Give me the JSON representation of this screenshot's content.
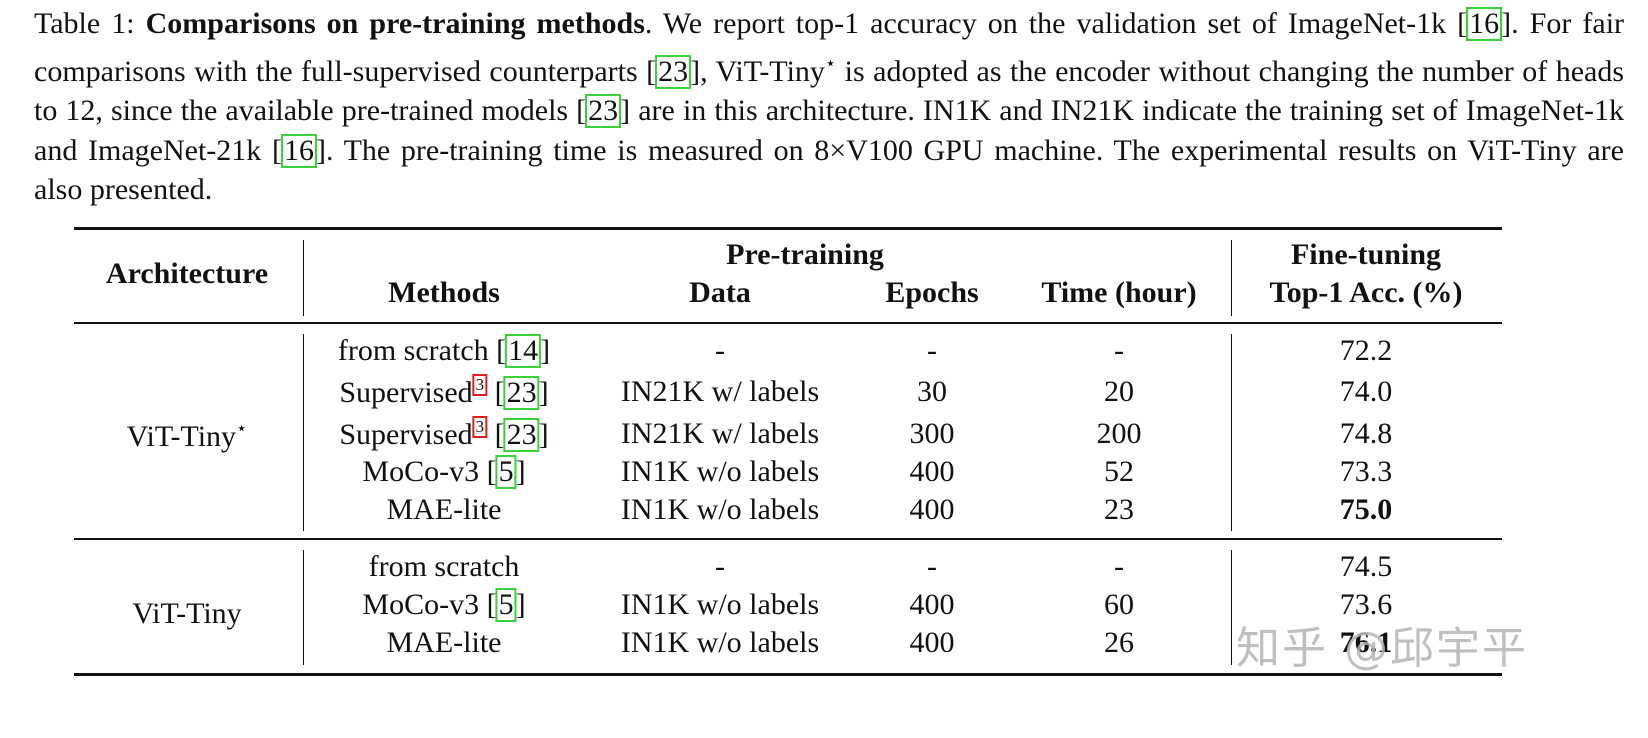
{
  "caption": {
    "label": "Table 1:",
    "title": "Comparisons on pre-training methods",
    "t1": ". We report top-1 accuracy on the validation set of ImageNet-1k [",
    "c1": "16",
    "t2": "]. For fair comparisons with the full-supervised counterparts [",
    "c2": "23",
    "t3": "], ViT-Tiny",
    "star": "⋆",
    "t4": " is adopted as the encoder without changing the number of heads to 12, since the available pre-trained models [",
    "c3": "23",
    "t5": "] are in this architecture. IN1K and IN21K indicate the training set of ImageNet-1k and ImageNet-21k [",
    "c4": "16",
    "t6": "]. The pre-training time is measured on 8×V100 GPU machine. The experimental results on ViT-Tiny are also presented."
  },
  "headers": {
    "architecture": "Architecture",
    "pretraining": "Pre-training",
    "methods": "Methods",
    "data": "Data",
    "epochs": "Epochs",
    "time": "Time (hour)",
    "finetuning": "Fine-tuning",
    "top1": "Top-1 Acc. (%)"
  },
  "groups": [
    {
      "arch": "ViT-Tiny",
      "arch_sup": "⋆",
      "rows": [
        {
          "method": "from scratch",
          "fn": "",
          "cite": "14",
          "data": "-",
          "epochs": "-",
          "time": "-",
          "acc": "72.2",
          "bold": false
        },
        {
          "method": "Supervised",
          "fn": "3",
          "cite": "23",
          "data": "IN21K w/ labels",
          "epochs": "30",
          "time": "20",
          "acc": "74.0",
          "bold": false
        },
        {
          "method": "Supervised",
          "fn": "3",
          "cite": "23",
          "data": "IN21K w/ labels",
          "epochs": "300",
          "time": "200",
          "acc": "74.8",
          "bold": false
        },
        {
          "method": "MoCo-v3",
          "fn": "",
          "cite": "5",
          "data": "IN1K w/o labels",
          "epochs": "400",
          "time": "52",
          "acc": "73.3",
          "bold": false
        },
        {
          "method": "MAE-lite",
          "fn": "",
          "cite": "",
          "data": "IN1K w/o labels",
          "epochs": "400",
          "time": "23",
          "acc": "75.0",
          "bold": true
        }
      ]
    },
    {
      "arch": "ViT-Tiny",
      "arch_sup": "",
      "rows": [
        {
          "method": "from scratch",
          "fn": "",
          "cite": "",
          "data": "-",
          "epochs": "-",
          "time": "-",
          "acc": "74.5",
          "bold": false
        },
        {
          "method": "MoCo-v3",
          "fn": "",
          "cite": "5",
          "data": "IN1K w/o labels",
          "epochs": "400",
          "time": "60",
          "acc": "73.6",
          "bold": false
        },
        {
          "method": "MAE-lite",
          "fn": "",
          "cite": "",
          "data": "IN1K w/o labels",
          "epochs": "400",
          "time": "26",
          "acc": "76.1",
          "bold": true
        }
      ]
    }
  ],
  "watermark": "知乎 @邱宇平"
}
